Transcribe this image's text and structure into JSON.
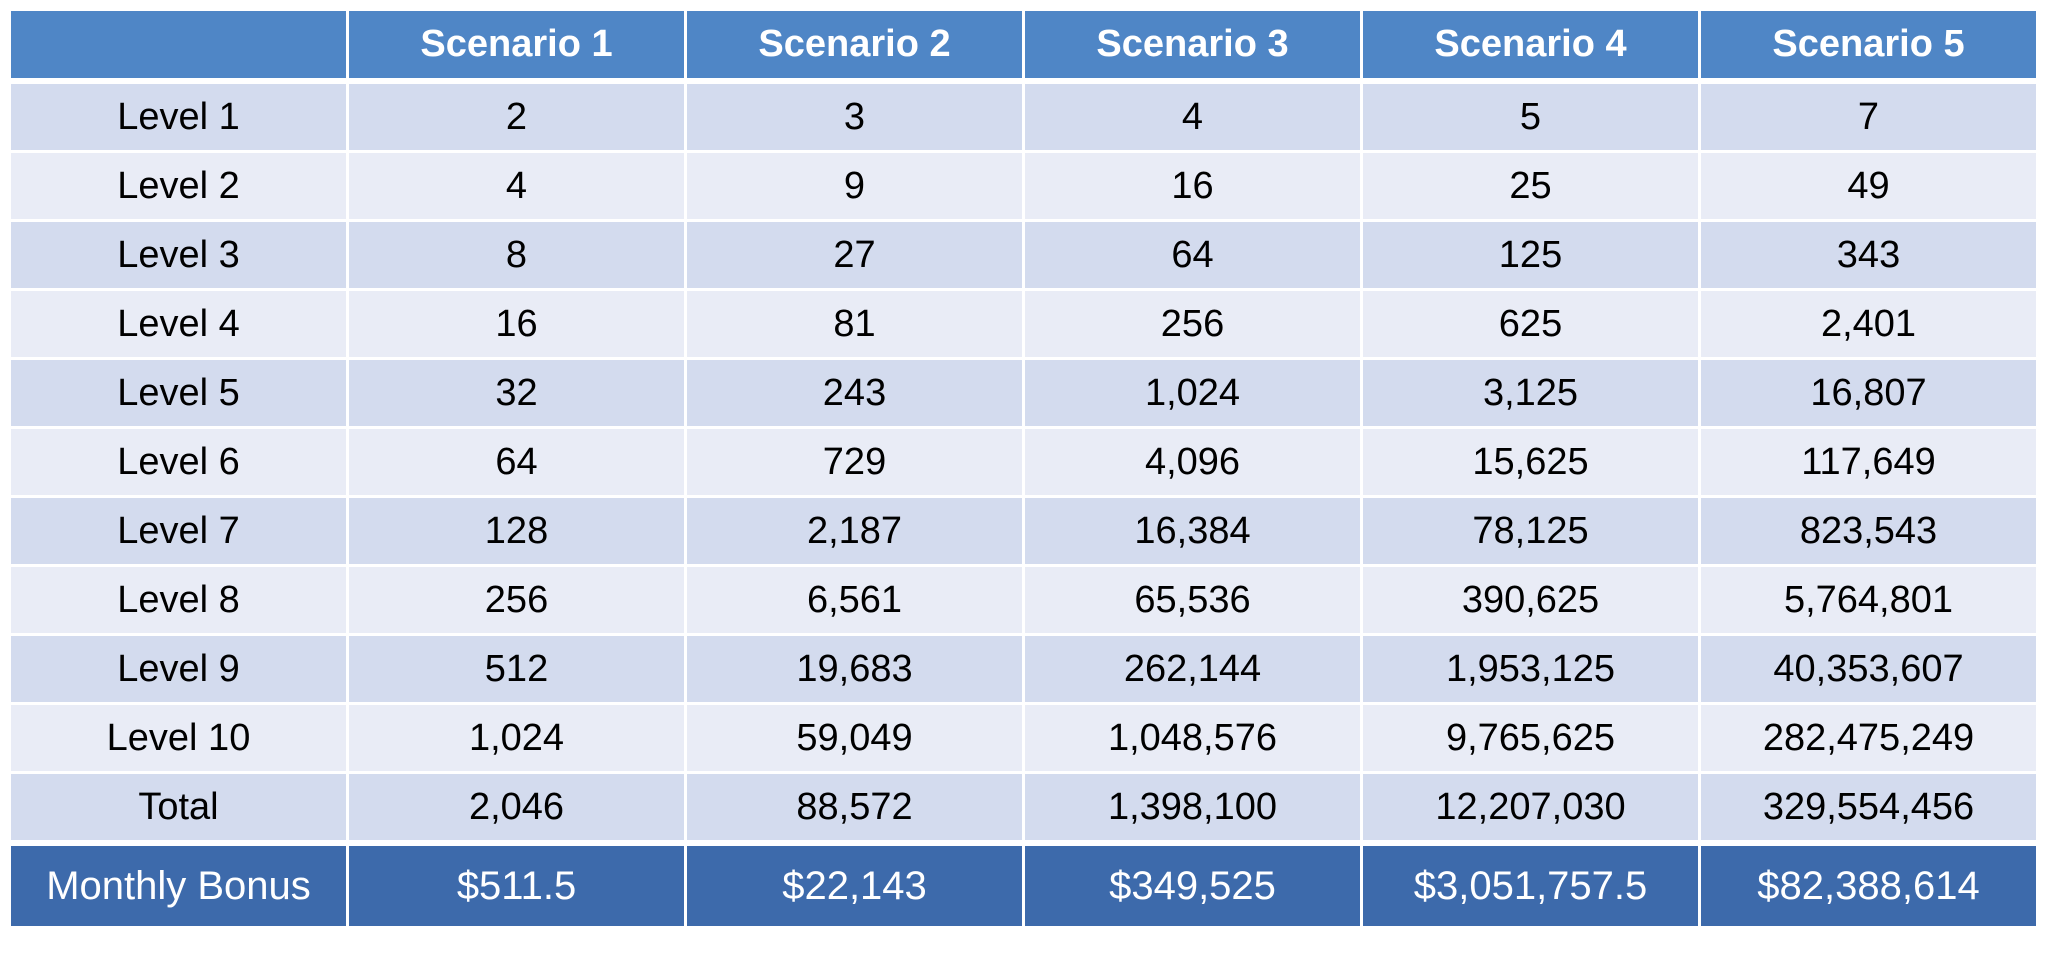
{
  "table": {
    "header": [
      "",
      "Scenario 1",
      "Scenario 2",
      "Scenario 3",
      "Scenario 4",
      "Scenario 5"
    ],
    "rows": [
      [
        "Level 1",
        "2",
        "3",
        "4",
        "5",
        "7"
      ],
      [
        "Level 2",
        "4",
        "9",
        "16",
        "25",
        "49"
      ],
      [
        "Level 3",
        "8",
        "27",
        "64",
        "125",
        "343"
      ],
      [
        "Level 4",
        "16",
        "81",
        "256",
        "625",
        "2,401"
      ],
      [
        "Level 5",
        "32",
        "243",
        "1,024",
        "3,125",
        "16,807"
      ],
      [
        "Level 6",
        "64",
        "729",
        "4,096",
        "15,625",
        "117,649"
      ],
      [
        "Level 7",
        "128",
        "2,187",
        "16,384",
        "78,125",
        "823,543"
      ],
      [
        "Level 8",
        "256",
        "6,561",
        "65,536",
        "390,625",
        "5,764,801"
      ],
      [
        "Level 9",
        "512",
        "19,683",
        "262,144",
        "1,953,125",
        "40,353,607"
      ],
      [
        "Level 10",
        "1,024",
        "59,049",
        "1,048,576",
        "9,765,625",
        "282,475,249"
      ],
      [
        "Total",
        "2,046",
        "88,572",
        "1,398,100",
        "12,207,030",
        "329,554,456"
      ]
    ],
    "bonus_row": [
      "Monthly Bonus",
      "$511.5",
      "$22,143",
      "$349,525",
      "$3,051,757.5",
      "$82,388,614"
    ]
  },
  "colors": {
    "header_bg": "#4f86c6",
    "row_dark": "#d3dbee",
    "row_light": "#e9ecf6",
    "bonus_bg": "#3d6aab"
  }
}
